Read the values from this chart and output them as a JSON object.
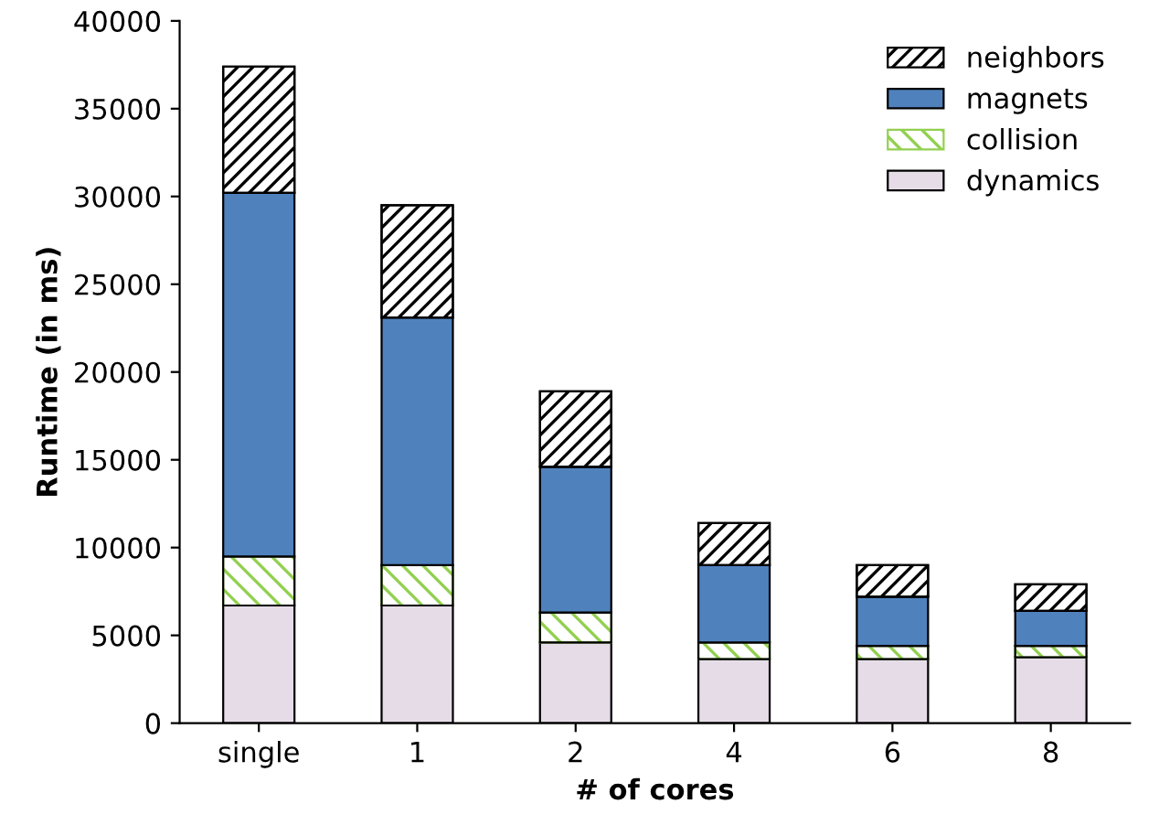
{
  "chart_data": {
    "type": "bar",
    "stacked": true,
    "xlabel": "# of cores",
    "ylabel": "Runtime (in ms)",
    "categories": [
      "single",
      "1",
      "2",
      "4",
      "6",
      "8"
    ],
    "series": [
      {
        "name": "dynamics",
        "color": "#e6dce8",
        "values": [
          6700,
          6700,
          4600,
          3650,
          3650,
          3750
        ]
      },
      {
        "name": "collision",
        "color": "#92d050",
        "values": [
          2800,
          2300,
          1700,
          950,
          750,
          650
        ]
      },
      {
        "name": "magnets",
        "color": "#4f81bd",
        "values": [
          20700,
          14100,
          8300,
          4400,
          2800,
          2000
        ]
      },
      {
        "name": "neighbors",
        "color": "#000000",
        "values": [
          7200,
          6400,
          4300,
          2400,
          1800,
          1500
        ]
      }
    ],
    "ylim": [
      0,
      40000
    ],
    "yticks": [
      0,
      5000,
      10000,
      15000,
      20000,
      25000,
      30000,
      35000,
      40000
    ],
    "grid": false,
    "legend": "top right"
  }
}
